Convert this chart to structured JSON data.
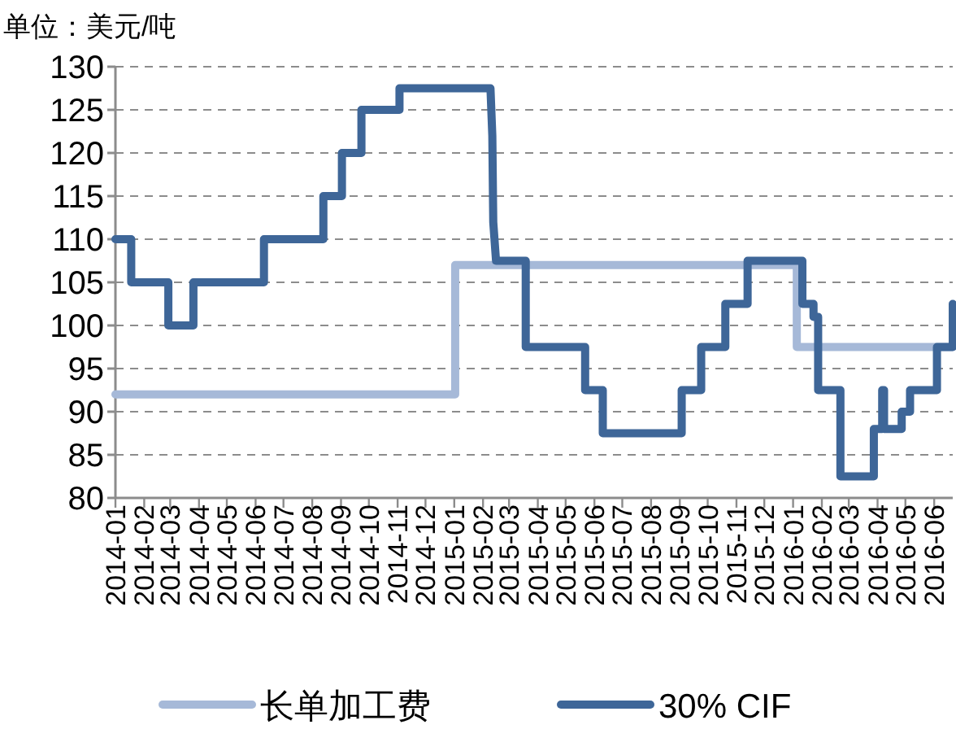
{
  "chart_data": {
    "type": "line",
    "ylabel": "单位：美元/吨",
    "xlim": [
      "2014-01-01",
      "2016-06-21"
    ],
    "xticks": [
      "2014-01",
      "2014-02",
      "2014-03",
      "2014-04",
      "2014-05",
      "2014-06",
      "2014-07",
      "2014-08",
      "2014-09",
      "2014-10",
      "2014-11",
      "2014-12",
      "2015-01",
      "2015-02",
      "2015-03",
      "2015-04",
      "2015-05",
      "2015-06",
      "2015-07",
      "2015-08",
      "2015-09",
      "2015-10",
      "2015-11",
      "2015-12",
      "2016-01",
      "2016-02",
      "2016-03",
      "2016-04",
      "2016-05",
      "2016-06"
    ],
    "ylim": [
      80,
      130
    ],
    "yticks": [
      80,
      85,
      90,
      95,
      100,
      105,
      110,
      115,
      120,
      125,
      130
    ],
    "grid": "y",
    "legend": "bottom",
    "line_style": "solid",
    "marker": "none",
    "series": [
      {
        "name": "长单加工费",
        "color": "#a6b9d8",
        "x": [
          "2014-01-01",
          "2015-01-02",
          "2015-01-02",
          "2016-01-05",
          "2016-01-05",
          "2016-06-21"
        ],
        "values": [
          92,
          92,
          107,
          107,
          97.5,
          97.5
        ]
      },
      {
        "name": "30% CIF",
        "color": "#3e6698",
        "x": [
          "2014-01-01",
          "2014-01-18",
          "2014-01-18",
          "2014-02-27",
          "2014-02-27",
          "2014-03-26",
          "2014-03-26",
          "2014-06-10",
          "2014-06-10",
          "2014-08-13",
          "2014-08-13",
          "2014-09-02",
          "2014-09-02",
          "2014-09-23",
          "2014-09-23",
          "2014-11-03",
          "2014-11-03",
          "2015-02-09",
          "2015-02-11",
          "2015-02-12",
          "2015-02-15",
          "2015-03-19",
          "2015-03-19",
          "2015-05-22",
          "2015-05-22",
          "2015-06-10",
          "2015-06-10",
          "2015-09-03",
          "2015-09-03",
          "2015-09-24",
          "2015-09-24",
          "2015-10-20",
          "2015-10-20",
          "2015-11-13",
          "2015-11-13",
          "2016-01-11",
          "2016-01-11",
          "2016-01-23",
          "2016-01-23",
          "2016-01-28",
          "2016-01-28",
          "2016-02-21",
          "2016-02-21",
          "2016-03-28",
          "2016-03-28",
          "2016-04-06",
          "2016-04-06",
          "2016-04-08",
          "2016-04-08",
          "2016-04-27",
          "2016-04-27",
          "2016-05-06",
          "2016-05-06",
          "2016-06-04",
          "2016-06-04",
          "2016-06-21",
          "2016-06-21"
        ],
        "values": [
          110,
          110,
          105,
          105,
          100,
          100,
          105,
          105,
          110,
          110,
          115,
          115,
          120,
          120,
          125,
          125,
          127.5,
          127.5,
          122,
          112,
          107.5,
          107.5,
          97.5,
          97.5,
          92.5,
          92.5,
          87.5,
          87.5,
          92.5,
          92.5,
          97.5,
          97.5,
          102.5,
          102.5,
          107.5,
          107.5,
          102.5,
          102.5,
          101,
          101,
          92.5,
          92.5,
          82.5,
          82.5,
          88,
          88,
          92.5,
          92.5,
          88,
          88,
          90,
          90,
          92.5,
          92.5,
          97.5,
          97.5,
          102.5
        ]
      }
    ]
  }
}
